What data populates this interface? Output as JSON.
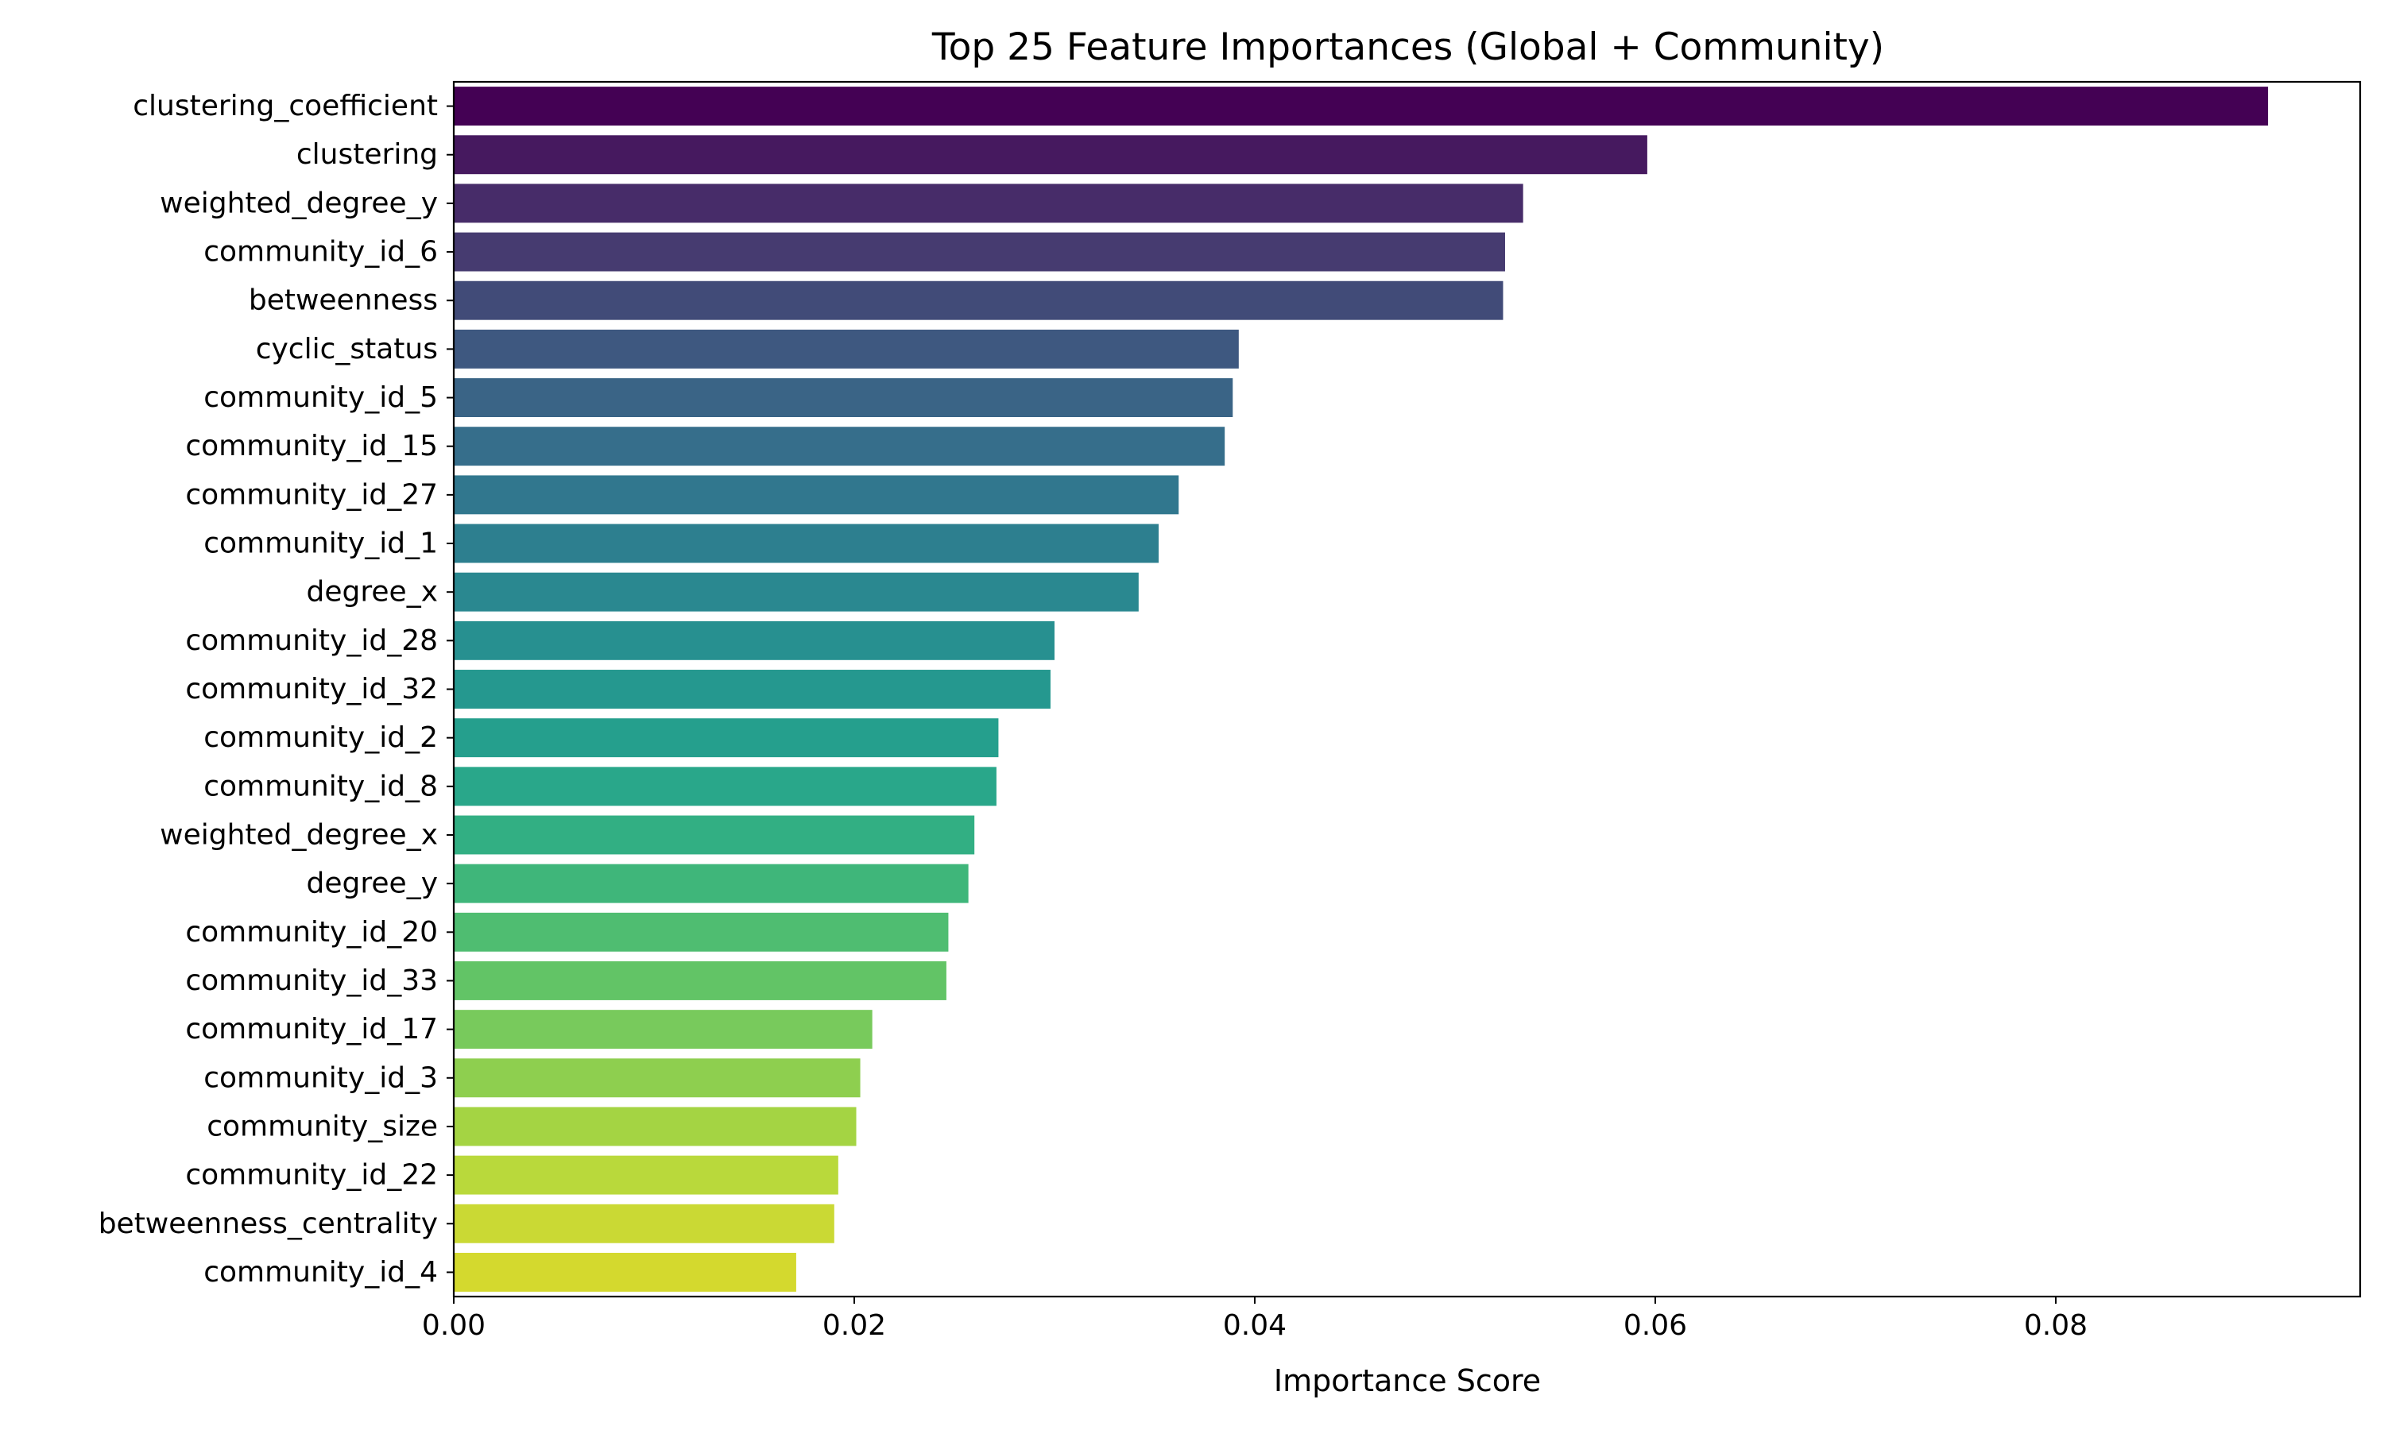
{
  "chart_data": {
    "type": "bar",
    "orientation": "horizontal",
    "title": "Top 25 Feature Importances (Global + Community)",
    "xlabel": "Importance Score",
    "ylabel": "",
    "xlim": [
      0,
      0.0952
    ],
    "xticks": [
      0.0,
      0.02,
      0.04,
      0.06,
      0.08
    ],
    "xtick_labels": [
      "0.00",
      "0.02",
      "0.04",
      "0.06",
      "0.08"
    ],
    "grid": false,
    "legend": "none",
    "colormap": "viridis",
    "categories": [
      "clustering_coefficient",
      "clustering",
      "weighted_degree_y",
      "community_id_6",
      "betweenness",
      "cyclic_status",
      "community_id_5",
      "community_id_15",
      "community_id_27",
      "community_id_1",
      "degree_x",
      "community_id_28",
      "community_id_32",
      "community_id_2",
      "community_id_8",
      "weighted_degree_x",
      "degree_y",
      "community_id_20",
      "community_id_33",
      "community_id_17",
      "community_id_3",
      "community_size",
      "community_id_22",
      "betweenness_centrality",
      "community_id_4"
    ],
    "values": [
      0.0906,
      0.0596,
      0.0534,
      0.0525,
      0.0524,
      0.0392,
      0.0389,
      0.0385,
      0.0362,
      0.0352,
      0.0342,
      0.03,
      0.0298,
      0.0272,
      0.0271,
      0.026,
      0.0257,
      0.0247,
      0.0246,
      0.0209,
      0.0203,
      0.0201,
      0.0192,
      0.019,
      0.0171
    ],
    "colors": [
      "#440154",
      "#46195f",
      "#472c69",
      "#463b70",
      "#414b78",
      "#3e5880",
      "#3a6486",
      "#366e8b",
      "#31778e",
      "#2d7f8f",
      "#2a8890",
      "#279090",
      "#25988f",
      "#259f8d",
      "#29a78a",
      "#32af83",
      "#3fb67a",
      "#4fbd71",
      "#62c466",
      "#78ca5c",
      "#8ecf4f",
      "#a4d443",
      "#b9d93b",
      "#cad934",
      "#d4d92e"
    ]
  }
}
